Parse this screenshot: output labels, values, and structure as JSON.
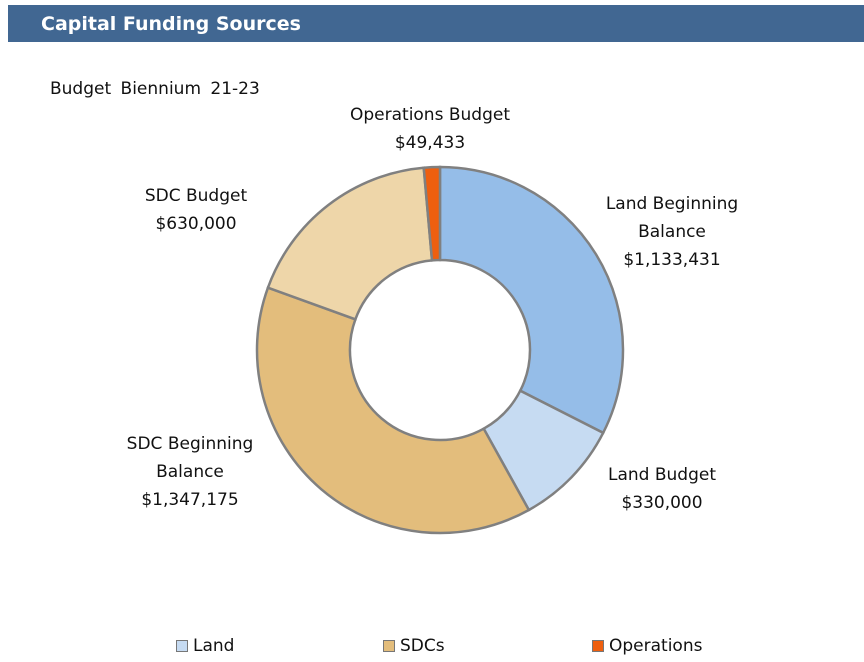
{
  "header": {
    "title": "Capital Funding Sources"
  },
  "chart_data": {
    "type": "donut",
    "subtitle": "Budget Biennium 21-23",
    "categories": [
      "Land Beginning Balance",
      "Land Budget",
      "SDC Beginning Balance",
      "SDC Budget",
      "Operations Budget"
    ],
    "values": [
      1133431,
      330000,
      1347175,
      630000,
      49433
    ],
    "value_labels": [
      "$1,133,431",
      "$330,000",
      "$1,347,175",
      "$630,000",
      "$49,433"
    ],
    "colors": [
      "#95bde8",
      "#c6dbf2",
      "#e3bd7c",
      "#eed6a9",
      "#ee5f0f"
    ],
    "legend": [
      {
        "name": "Land",
        "color": "#c6dbf2"
      },
      {
        "name": "SDCs",
        "color": "#e3bd7c"
      },
      {
        "name": "Operations",
        "color": "#ee5f0f"
      }
    ]
  }
}
